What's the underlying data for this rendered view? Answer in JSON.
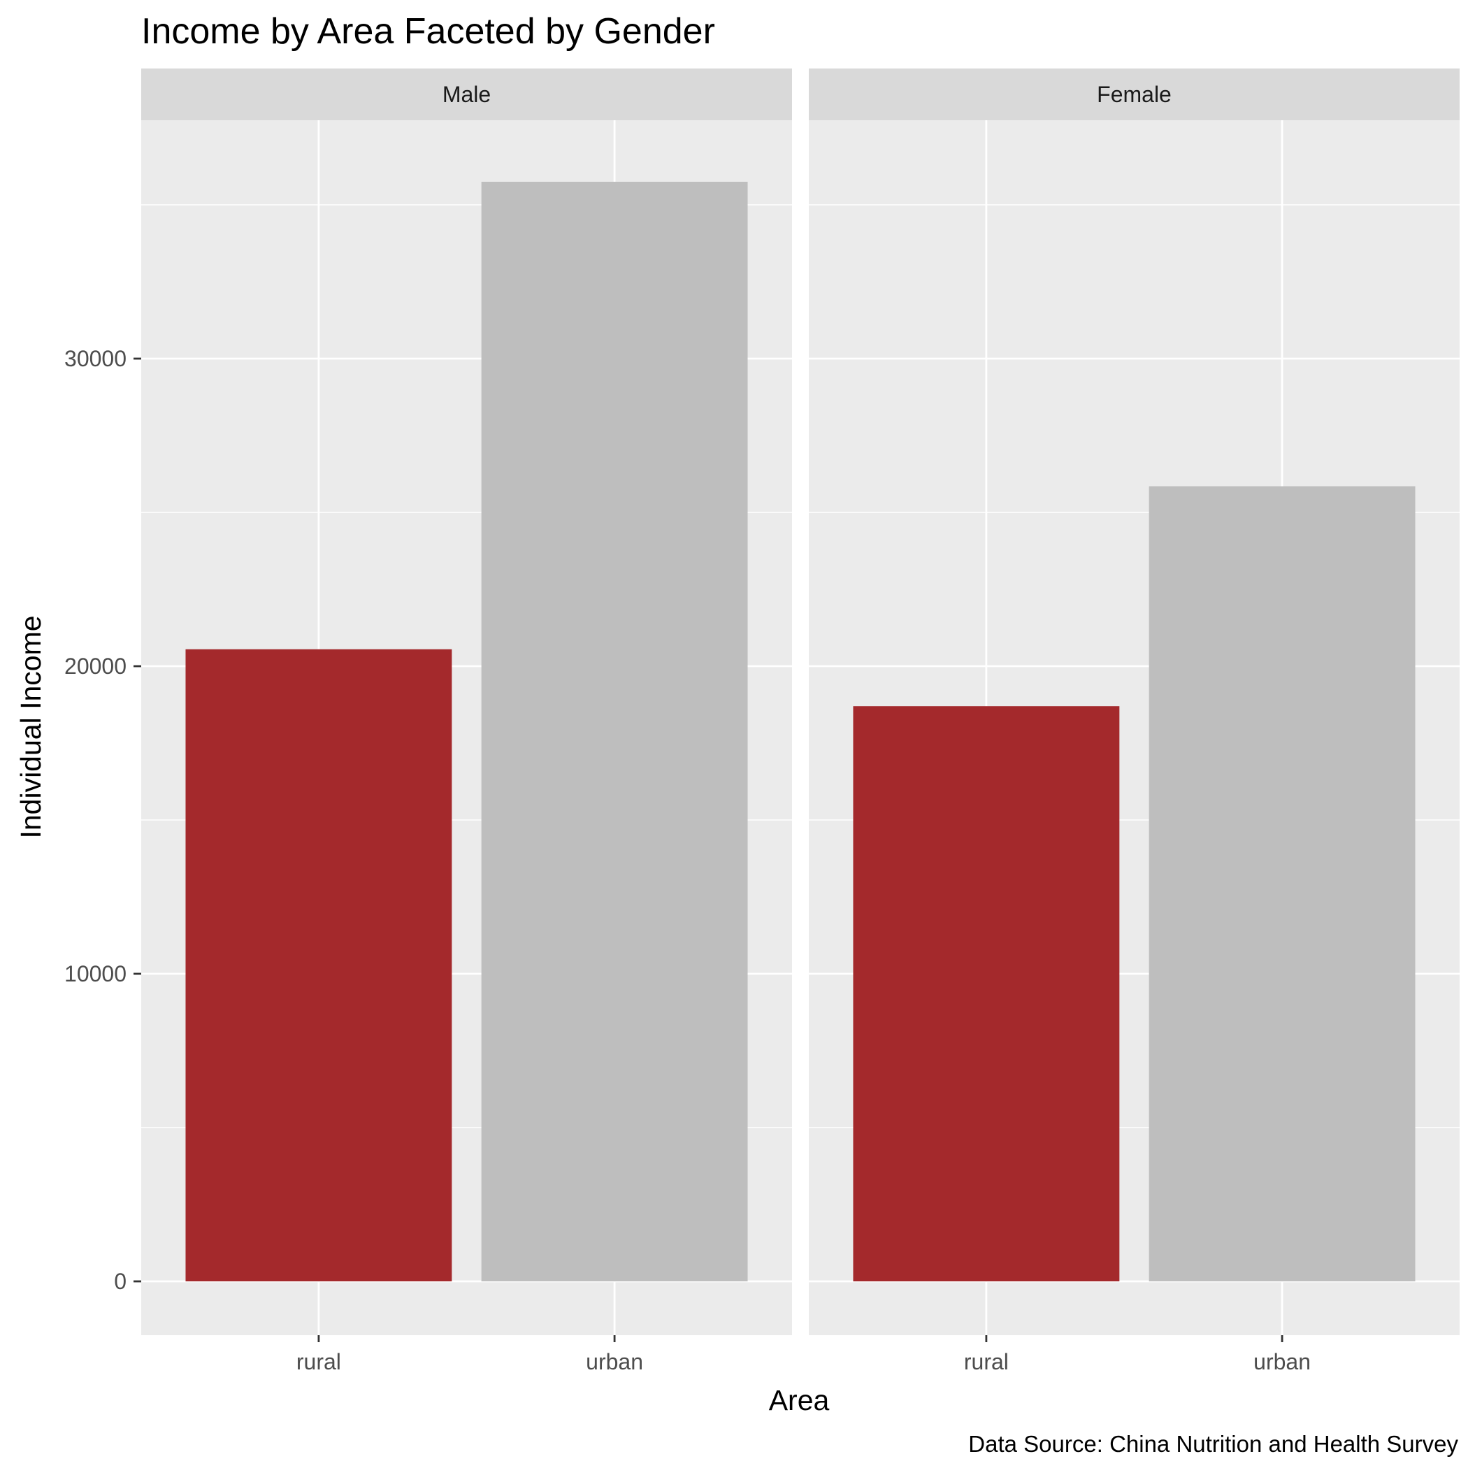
{
  "chart_data": {
    "type": "bar",
    "title": "Income by Area Faceted by Gender",
    "xlabel": "Area",
    "ylabel": "Individual Income",
    "caption": "Data Source: China Nutrition and Health Survey",
    "categories": [
      "rural",
      "urban"
    ],
    "facets": [
      {
        "name": "Male",
        "values": [
          20550,
          35750
        ]
      },
      {
        "name": "Female",
        "values": [
          18700,
          25850
        ]
      }
    ],
    "ylim": [
      -1750,
      37750
    ],
    "yticks": [
      0,
      10000,
      20000,
      30000
    ],
    "ytick_labels": [
      "0",
      "10000",
      "20000",
      "30000"
    ],
    "grid": true,
    "legend": "none",
    "colors": {
      "rural": "#a4292c",
      "urban": "#bebebe",
      "panel_background": "#ebebeb",
      "strip_background": "#d9d9d9",
      "grid": "#ffffff"
    }
  }
}
